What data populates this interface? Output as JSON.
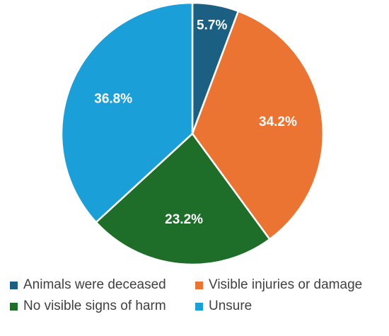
{
  "chart_data": {
    "type": "pie",
    "title": "",
    "categories": [
      "Animals were deceased",
      "Visible injuries or damage",
      "No visible signs of harm",
      "Unsure"
    ],
    "values": [
      5.7,
      34.2,
      23.2,
      36.8
    ],
    "labels": [
      "5.7%",
      "34.2%",
      "23.2%",
      "36.8%"
    ],
    "colors": [
      "#1b5f82",
      "#ec7433",
      "#1e6e2a",
      "#1a9fd9"
    ],
    "start_angle_deg": 0,
    "direction": "clockwise",
    "data_label_color": "#ffffff",
    "legend_position": "bottom"
  }
}
